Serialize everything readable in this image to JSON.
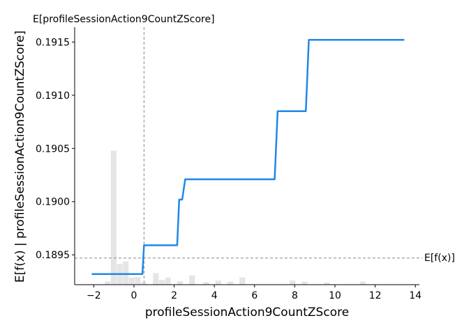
{
  "chart_data": {
    "type": "line",
    "title": "",
    "xlabel": "profileSessionAction9CountZScore",
    "ylabel": "E[f(x) | profileSessionAction9CountZScore]",
    "top_label": "E[profileSessionAction9CountZScore]",
    "ref_line_label": "E[f(x)]",
    "xlim": [
      -2.95,
      14.2
    ],
    "ylim": [
      0.18922,
      0.19164
    ],
    "xticks": [
      -2,
      0,
      2,
      4,
      6,
      8,
      10,
      12,
      14
    ],
    "xtick_labels": [
      "−2",
      "0",
      "2",
      "4",
      "6",
      "8",
      "10",
      "12",
      "14"
    ],
    "yticks": [
      0.1895,
      0.19,
      0.1905,
      0.191,
      0.1915
    ],
    "ytick_labels": [
      "0.1895",
      "0.1900",
      "0.1905",
      "0.1910",
      "0.1915"
    ],
    "expected_x": 0.5,
    "expected_fx": 0.18947,
    "series": [
      {
        "color": "#1e88e5",
        "x": [
          -2.1,
          0.42,
          0.5,
          2.15,
          2.25,
          2.4,
          2.55,
          7.0,
          7.15,
          8.55,
          8.7,
          13.45
        ],
        "y": [
          0.18932,
          0.18932,
          0.18959,
          0.18959,
          0.19002,
          0.19002,
          0.19021,
          0.19021,
          0.19085,
          0.19085,
          0.19152,
          0.19152
        ]
      }
    ],
    "histogram": {
      "color": "#e5e5e5",
      "bins": [
        {
          "x0": -1.45,
          "x1": -1.15,
          "height": 0.012
        },
        {
          "x0": -1.15,
          "x1": -0.85,
          "height": 0.52
        },
        {
          "x0": -0.85,
          "x1": -0.55,
          "height": 0.08
        },
        {
          "x0": -0.55,
          "x1": -0.25,
          "height": 0.09
        },
        {
          "x0": -0.25,
          "x1": 0.05,
          "height": 0.028
        },
        {
          "x0": 0.05,
          "x1": 0.35,
          "height": 0.03
        },
        {
          "x0": 0.35,
          "x1": 0.65,
          "height": 0.008
        },
        {
          "x0": 0.95,
          "x1": 1.25,
          "height": 0.045
        },
        {
          "x0": 1.25,
          "x1": 1.55,
          "height": 0.018
        },
        {
          "x0": 1.55,
          "x1": 1.85,
          "height": 0.028
        },
        {
          "x0": 2.15,
          "x1": 2.45,
          "height": 0.014
        },
        {
          "x0": 2.75,
          "x1": 3.05,
          "height": 0.036
        },
        {
          "x0": 3.45,
          "x1": 3.75,
          "height": 0.01
        },
        {
          "x0": 4.05,
          "x1": 4.35,
          "height": 0.016
        },
        {
          "x0": 4.65,
          "x1": 4.95,
          "height": 0.012
        },
        {
          "x0": 5.25,
          "x1": 5.55,
          "height": 0.028
        },
        {
          "x0": 7.75,
          "x1": 8.05,
          "height": 0.016
        },
        {
          "x0": 8.35,
          "x1": 8.65,
          "height": 0.012
        },
        {
          "x0": 9.45,
          "x1": 9.75,
          "height": 0.008
        },
        {
          "x0": 11.25,
          "x1": 11.55,
          "height": 0.012
        }
      ]
    },
    "grid": false,
    "legend": "none"
  }
}
